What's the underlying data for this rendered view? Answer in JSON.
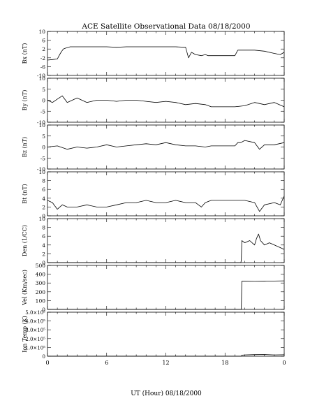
{
  "chart_data": {
    "type": "line",
    "title": "ACE Satellite Observational Data   08/18/2000",
    "xlabel": "UT (Hour)   08/18/2000",
    "x_ticks": [
      "0",
      "6",
      "12",
      "18",
      "0"
    ],
    "x_range": [
      0,
      24
    ],
    "panels": [
      {
        "ylabel": "Bx (nT)",
        "ylim": [
          -10,
          10
        ],
        "y_ticks": [
          "10",
          "6",
          "2",
          "-2",
          "-6",
          "-10"
        ],
        "y_tick_values": [
          10,
          6,
          2,
          -2,
          -6,
          -10
        ],
        "series": [
          {
            "x": [
              0,
              0.5,
              1.0,
              1.3,
              1.6,
              1.9,
              2.3,
              3,
              4,
              5,
              6,
              7,
              8,
              9,
              10,
              11,
              12,
              13,
              14.0,
              14.3,
              14.6,
              15,
              15.6,
              16,
              16.3,
              16.6,
              17,
              18,
              19,
              19.3,
              19.6,
              20,
              21,
              22,
              23,
              23.6,
              24
            ],
            "y": [
              -3,
              -2.8,
              -2.5,
              0,
              2,
              2.5,
              3,
              3,
              3,
              3,
              3,
              2.8,
              3,
              3,
              3,
              3,
              3,
              3,
              2.8,
              -2,
              0.5,
              -0.5,
              -1,
              -0.5,
              -1,
              -1,
              -1,
              -1,
              -1,
              1.5,
              1.5,
              1.5,
              1.5,
              1.0,
              0,
              -0.5,
              0.5
            ]
          }
        ]
      },
      {
        "ylabel": "By (nT)",
        "ylim": [
          -10,
          10
        ],
        "y_ticks": [
          "10",
          "5",
          "0",
          "-5",
          "-10"
        ],
        "y_tick_values": [
          10,
          5,
          0,
          -5,
          -10
        ],
        "series": [
          {
            "x": [
              0,
              0.5,
              1,
              1.5,
              2,
              3,
              4,
              5,
              6,
              7,
              8,
              9,
              10,
              11,
              12,
              13,
              14,
              15,
              16,
              16.6,
              17,
              18,
              19,
              20,
              21,
              22,
              23,
              24
            ],
            "y": [
              0,
              -1,
              0.5,
              2,
              -1,
              1,
              -1,
              0,
              0,
              -0.5,
              0,
              0,
              -0.5,
              -1,
              -0.5,
              -1,
              -2,
              -1.5,
              -2,
              -3,
              -3,
              -3,
              -3,
              -2.5,
              -1,
              -2,
              -1,
              -3
            ]
          }
        ]
      },
      {
        "ylabel": "Bz (nT)",
        "ylim": [
          -10,
          10
        ],
        "y_ticks": [
          "10",
          "5",
          "0",
          "-5",
          "-10"
        ],
        "y_tick_values": [
          10,
          5,
          0,
          -5,
          -10
        ],
        "series": [
          {
            "x": [
              0,
              1,
              2,
              3,
              4,
              5,
              6,
              7,
              8,
              9,
              10,
              11,
              12,
              13,
              14,
              15,
              16,
              16.6,
              17,
              18,
              19,
              19.3,
              19.6,
              20,
              21,
              21.5,
              22,
              23,
              24
            ],
            "y": [
              0,
              0.5,
              -1,
              0,
              -0.5,
              0,
              1,
              0,
              0.5,
              1,
              1.5,
              1,
              2,
              1,
              0.5,
              0.5,
              0,
              0.5,
              0.5,
              0.5,
              0.5,
              2,
              2,
              3,
              2,
              -1,
              1,
              1,
              2
            ]
          }
        ]
      },
      {
        "ylabel": "Bt (nT)",
        "ylim": [
          0,
          10
        ],
        "y_ticks": [
          "10",
          "8",
          "6",
          "4",
          "2",
          "0"
        ],
        "y_tick_values": [
          10,
          8,
          6,
          4,
          2,
          0
        ],
        "series": [
          {
            "x": [
              0,
              0.5,
              1,
              1.5,
              2,
              3,
              4,
              5,
              6,
              7,
              8,
              9,
              10,
              11,
              12,
              13,
              14,
              15,
              15.6,
              16,
              16.6,
              17,
              18,
              19,
              20,
              21,
              21.5,
              22,
              23,
              23.6,
              24
            ],
            "y": [
              3.5,
              3,
              1.5,
              2.5,
              2,
              2,
              2.5,
              2,
              2,
              2.5,
              3,
              3,
              3.5,
              3,
              3,
              3.5,
              3,
              3,
              2,
              3,
              3.5,
              3.5,
              3.5,
              3.5,
              3.5,
              3,
              1,
              2.5,
              3,
              2.5,
              4.5
            ]
          }
        ]
      },
      {
        "ylabel": "Den (1/CC)",
        "ylim": [
          0,
          10
        ],
        "y_ticks": [
          "10",
          "8",
          "6",
          "4",
          "2",
          "0"
        ],
        "y_tick_values": [
          10,
          8,
          6,
          4,
          2,
          0
        ],
        "series": [
          {
            "x": [
              0,
              19.6,
              19.65,
              19.7,
              20,
              20.5,
              21,
              21.2,
              21.4,
              21.6,
              22,
              22.5,
              23,
              23.5,
              24
            ],
            "y": [
              0,
              0,
              0.5,
              5,
              4.5,
              5,
              4,
              5.5,
              6.5,
              5,
              4,
              4.5,
              4,
              3.5,
              3
            ]
          }
        ]
      },
      {
        "ylabel": "Vel (Km/sec)",
        "ylim": [
          0,
          500
        ],
        "y_ticks": [
          "500",
          "400",
          "300",
          "200",
          "100",
          "0"
        ],
        "y_tick_values": [
          500,
          400,
          300,
          200,
          100,
          0
        ],
        "series": [
          {
            "x": [
              0,
              19.65,
              19.7,
              20,
              21,
              22,
              23,
              24
            ],
            "y": [
              0,
              0,
              320,
              320,
              318,
              320,
              322,
              325
            ]
          }
        ]
      },
      {
        "ylabel": "Ion Temp (K)",
        "ylim": [
          0,
          500000
        ],
        "y_ticks": [
          "5.0×10⁵",
          "4.0×10⁵",
          "3.0×10⁵",
          "2.0×10⁵",
          "1.0×10⁵",
          "0"
        ],
        "y_tick_values": [
          500000,
          400000,
          300000,
          200000,
          100000,
          0
        ],
        "series": [
          {
            "x": [
              0,
              19.65,
              19.7,
              20,
              21,
              22,
              23,
              24
            ],
            "y": [
              0,
              0,
              12000,
              15000,
              18000,
              20000,
              15000,
              17000
            ]
          }
        ]
      }
    ]
  }
}
